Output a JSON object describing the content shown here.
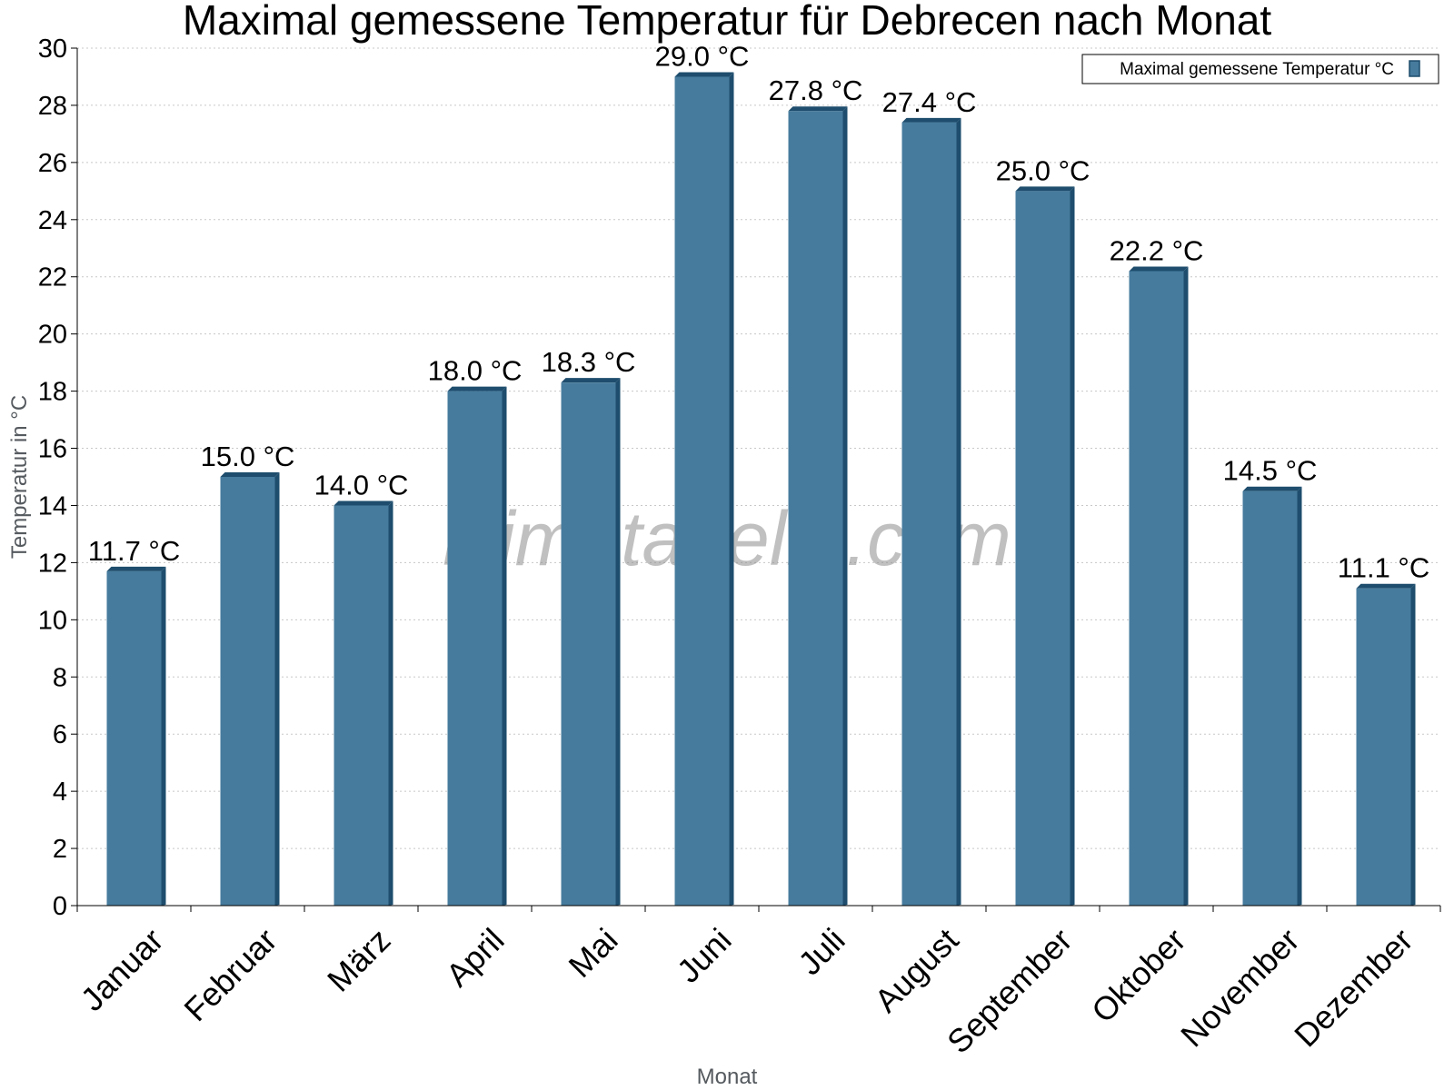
{
  "chart_data": {
    "type": "bar",
    "title": "Maximal gemessene Temperatur für Debrecen nach Monat",
    "xlabel": "Monat",
    "ylabel": "Temperatur in °C",
    "categories": [
      "Januar",
      "Februar",
      "März",
      "April",
      "Mai",
      "Juni",
      "Juli",
      "August",
      "September",
      "Oktober",
      "November",
      "Dezember"
    ],
    "series": [
      {
        "name": "Maximal gemessene Temperatur °C",
        "values": [
          11.7,
          15.0,
          14.0,
          18.0,
          18.3,
          29.0,
          27.8,
          27.4,
          25.0,
          22.2,
          14.5,
          11.1
        ]
      }
    ],
    "value_labels": [
      "11.7 °C",
      "15.0 °C",
      "14.0 °C",
      "18.0 °C",
      "18.3 °C",
      "29.0 °C",
      "27.8 °C",
      "27.4 °C",
      "25.0 °C",
      "22.2 °C",
      "14.5 °C",
      "11.1 °C"
    ],
    "ylim": [
      0,
      30
    ],
    "yticks": [
      "0",
      "2",
      "4",
      "6",
      "8",
      "10",
      "12",
      "14",
      "16",
      "18",
      "20",
      "22",
      "24",
      "26",
      "28",
      "30"
    ],
    "grid": true,
    "legend_position": "top-right",
    "colors": {
      "bar": "#467b9d",
      "bar_side": "#1e4d6d",
      "grid": "#c8c8c8"
    }
  },
  "watermark": "klimatabelle.com"
}
